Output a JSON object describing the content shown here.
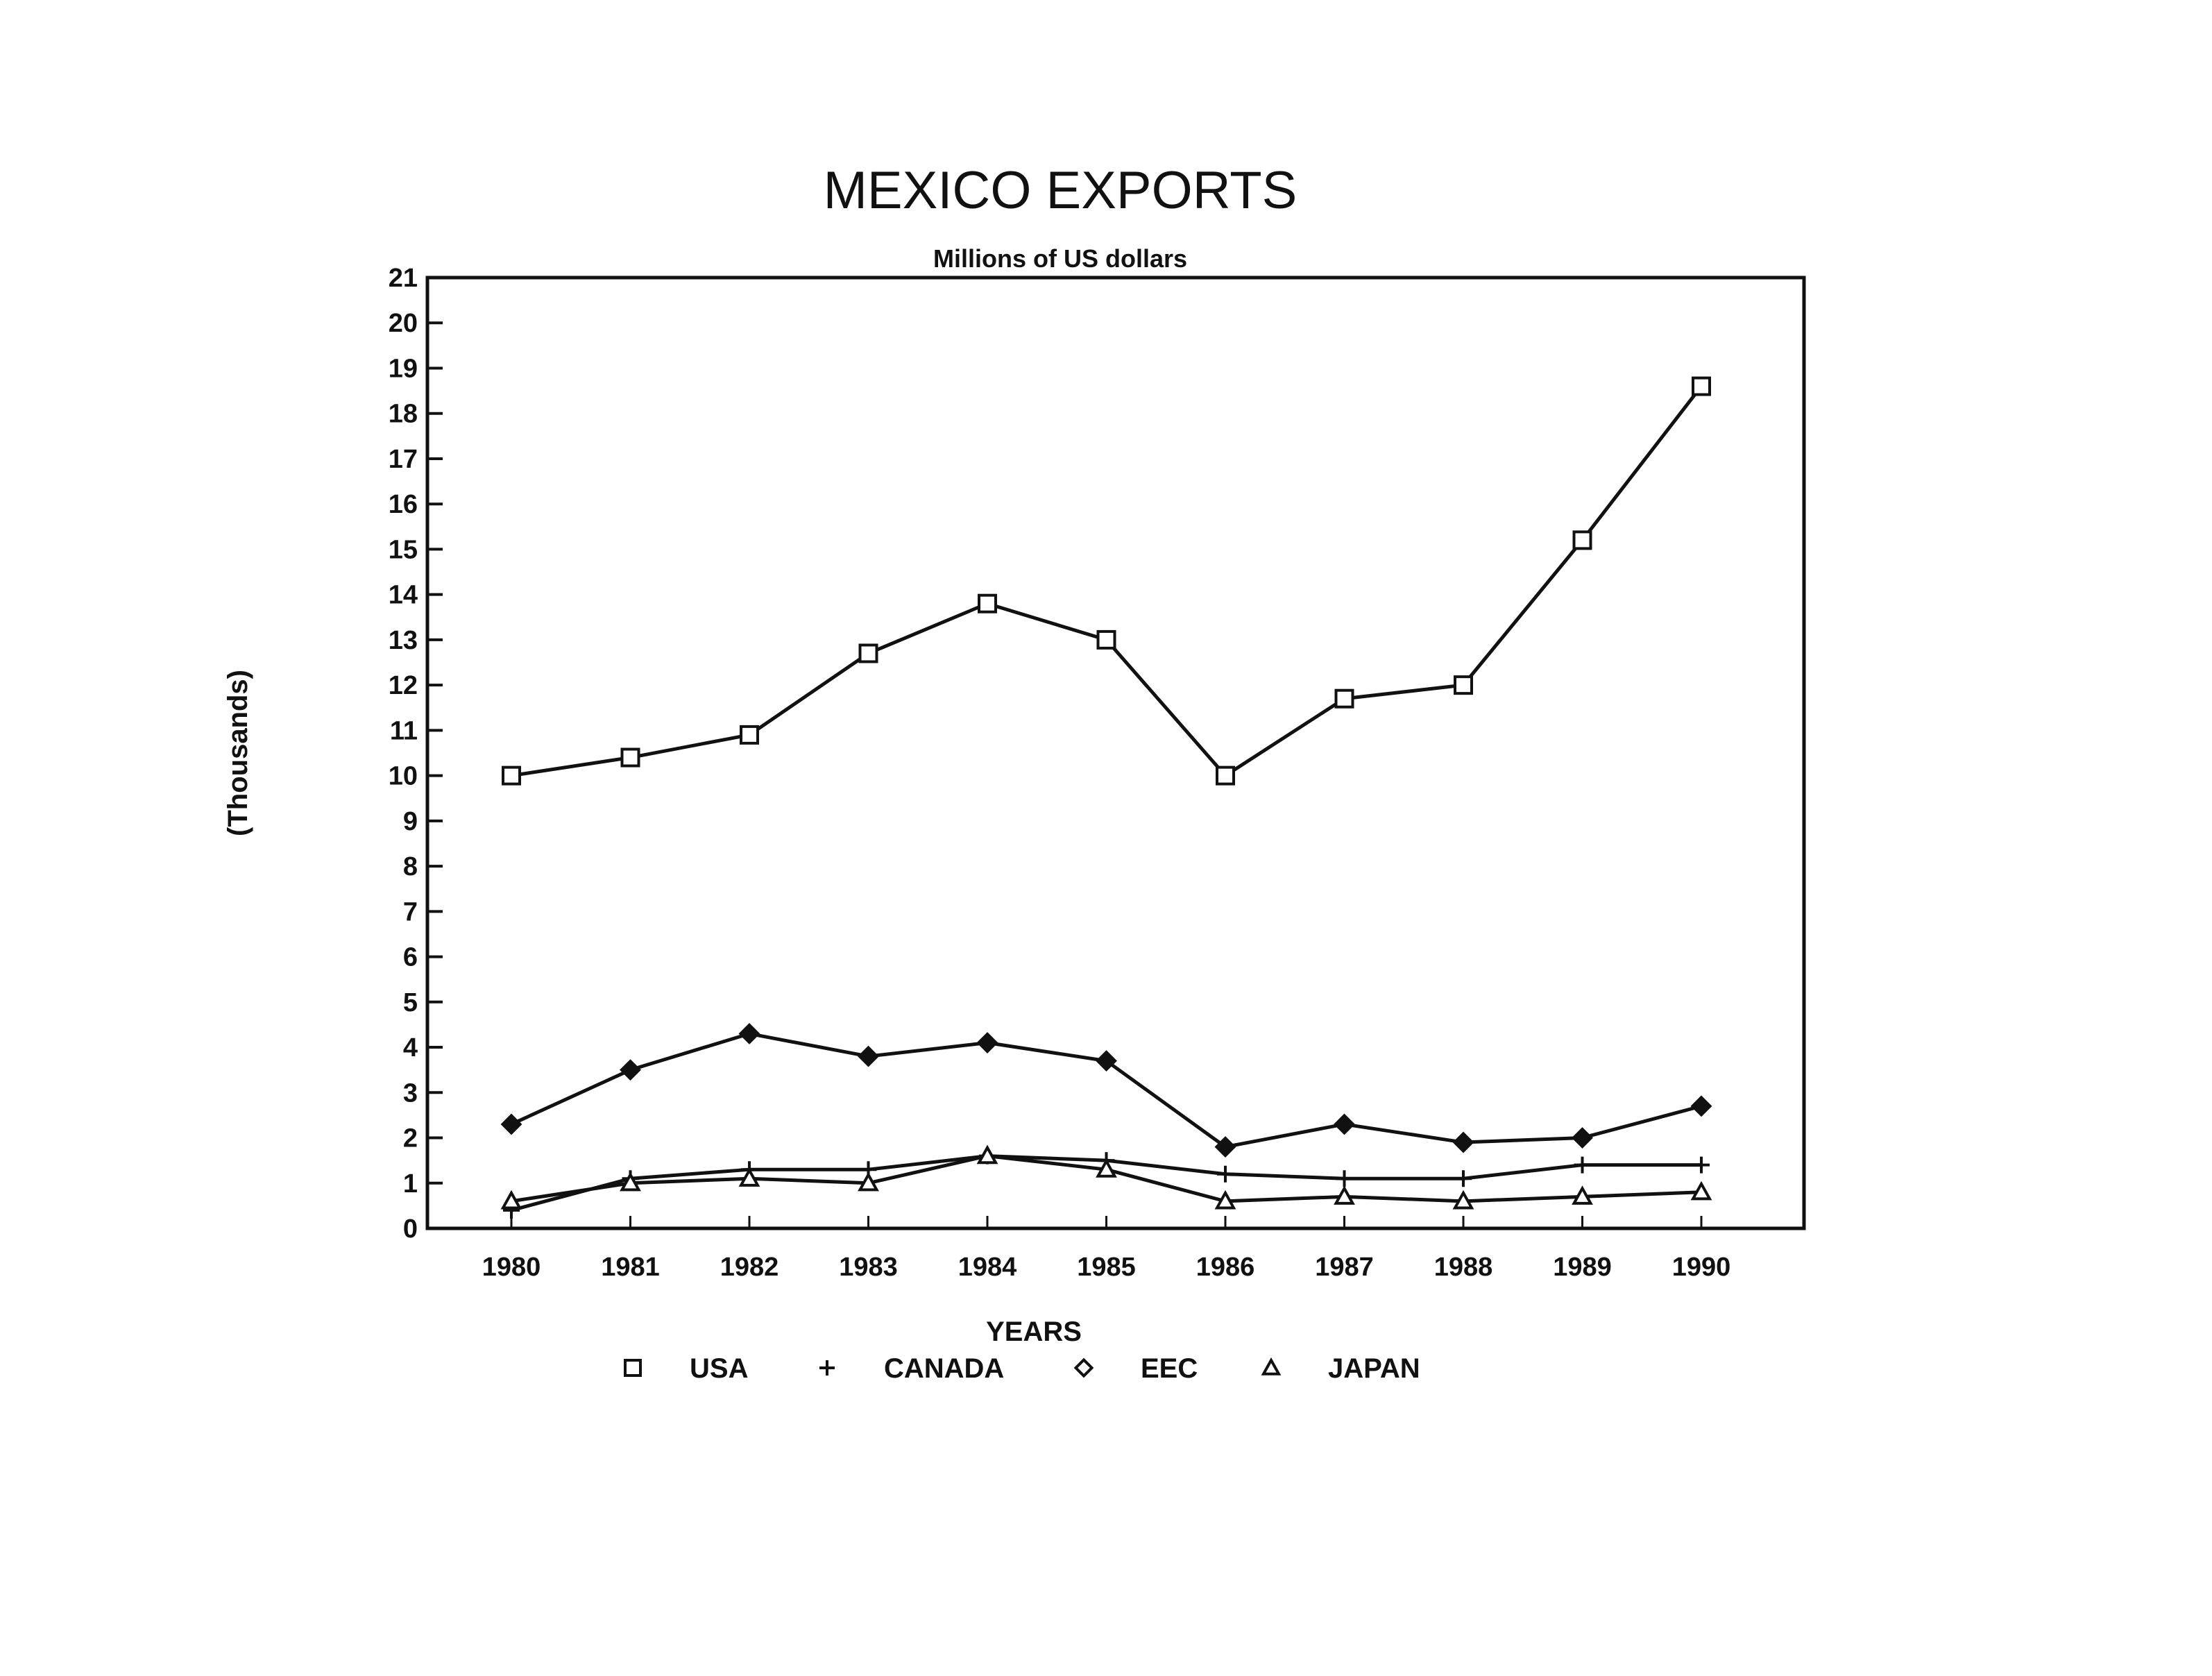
{
  "chart_data": {
    "type": "line",
    "title": "MEXICO EXPORTS",
    "subtitle": "Millions of US dollars",
    "xlabel": "YEARS",
    "ylabel": "(Thousands)",
    "categories": [
      "1980",
      "1981",
      "1982",
      "1983",
      "1984",
      "1985",
      "1986",
      "1987",
      "1988",
      "1989",
      "1990"
    ],
    "yticks": [
      "0",
      "1",
      "2",
      "3",
      "4",
      "5",
      "6",
      "7",
      "8",
      "9",
      "10",
      "11",
      "12",
      "13",
      "14",
      "15",
      "16",
      "17",
      "18",
      "19",
      "20",
      "21"
    ],
    "ylim": [
      0,
      21
    ],
    "grid": false,
    "legend": "bottom",
    "series": [
      {
        "name": "USA",
        "marker": "square-open",
        "values": [
          10.0,
          10.4,
          10.9,
          12.7,
          13.8,
          13.0,
          10.0,
          11.7,
          12.0,
          15.2,
          18.6
        ]
      },
      {
        "name": "CANADA",
        "marker": "plus",
        "values": [
          0.4,
          1.1,
          1.3,
          1.3,
          1.6,
          1.5,
          1.2,
          1.1,
          1.1,
          1.4,
          1.4
        ]
      },
      {
        "name": "EEC",
        "marker": "diamond-filled",
        "legend_marker": "diamond-open",
        "values": [
          2.3,
          3.5,
          4.3,
          3.8,
          4.1,
          3.7,
          1.8,
          2.3,
          1.9,
          2.0,
          2.7
        ]
      },
      {
        "name": "JAPAN",
        "marker": "triangle-open",
        "values": [
          0.6,
          1.0,
          1.1,
          1.0,
          1.6,
          1.3,
          0.6,
          0.7,
          0.6,
          0.7,
          0.8
        ]
      }
    ]
  }
}
